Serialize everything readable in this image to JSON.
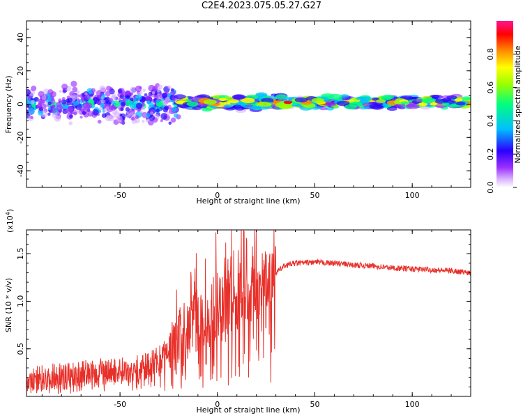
{
  "title": "C2E4.2023.075.05.27.G27",
  "colors": {
    "snr_line": "#e8302a",
    "colormap": [
      "#ffffff",
      "#d9b3ff",
      "#9b30ff",
      "#2b00ff",
      "#00bfff",
      "#00ff7f",
      "#9aff00",
      "#ffff00",
      "#ff8c00",
      "#ff0000",
      "#ff1493"
    ]
  },
  "chart_data": [
    {
      "type": "heatmap",
      "title": "C2E4.2023.075.05.27.G27",
      "xlabel": "Height of straight line (km)",
      "ylabel": "Frequency (Hz)",
      "xlim": [
        -98,
        130
      ],
      "ylim": [
        -50,
        50
      ],
      "x_ticks": [
        "-50",
        "0",
        "50",
        "100"
      ],
      "y_ticks": [
        "40",
        "20",
        "0",
        "-20",
        "-40"
      ],
      "colorbar": {
        "label": "Normalized spectral amplitude",
        "range": [
          0.0,
          1.0
        ],
        "ticks": [
          "0.0",
          "0.2",
          "0.4",
          "0.6",
          "0.8"
        ]
      },
      "bands": [
        {
          "x_range": [
            -98,
            -20
          ],
          "center_hz": 0,
          "spread_hz": 12,
          "peak": 0.55
        },
        {
          "x_range": [
            -20,
            30
          ],
          "center_hz": 1,
          "spread_hz": 5,
          "peak": 1.0
        },
        {
          "x_range": [
            30,
            130
          ],
          "center_hz": 1,
          "spread_hz": 4,
          "peak": 0.9
        }
      ]
    },
    {
      "type": "line",
      "xlabel": "Height of straight line (km)",
      "ylabel": "SNR (10 * v/v)",
      "y_multiplier": "(x10",
      "y_multiplier_exp": "4",
      "xlim": [
        -98,
        130
      ],
      "ylim": [
        0,
        1.75
      ],
      "x_ticks": [
        "-50",
        "0",
        "50",
        "100"
      ],
      "y_ticks": [
        "1.5",
        "1.0",
        "0.5"
      ],
      "series": [
        {
          "x": [
            -98,
            -90,
            -80,
            -70,
            -60,
            -50,
            -45,
            -40,
            -35,
            -30,
            -25,
            -20,
            -15,
            -10,
            -5,
            0,
            5,
            10,
            15,
            20,
            25,
            30,
            35,
            40,
            50,
            60,
            70,
            80,
            90,
            100,
            110,
            120,
            130
          ],
          "values": [
            0.15,
            0.2,
            0.22,
            0.25,
            0.26,
            0.27,
            0.28,
            0.3,
            0.33,
            0.4,
            0.5,
            0.6,
            0.7,
            0.8,
            0.85,
            0.95,
            1.0,
            1.05,
            1.1,
            1.15,
            1.25,
            1.3,
            1.38,
            1.4,
            1.41,
            1.4,
            1.38,
            1.37,
            1.35,
            1.34,
            1.33,
            1.32,
            1.3
          ]
        }
      ]
    }
  ]
}
